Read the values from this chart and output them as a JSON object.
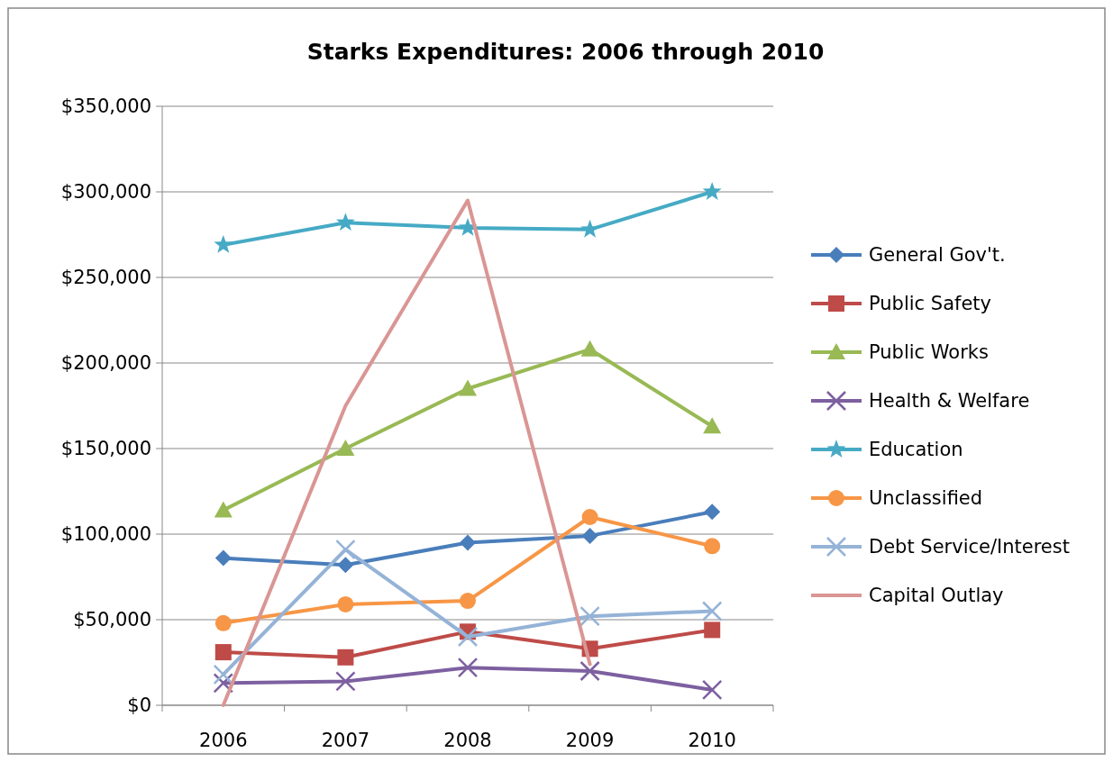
{
  "chart_data": {
    "type": "line",
    "title": "Starks Expenditures: 2006 through 2010",
    "categories": [
      "2006",
      "2007",
      "2008",
      "2009",
      "2010"
    ],
    "ylim": [
      0,
      350000
    ],
    "yticks": [
      {
        "value": 0,
        "label": "$0"
      },
      {
        "value": 50000,
        "label": "$50,000"
      },
      {
        "value": 100000,
        "label": "$100,000"
      },
      {
        "value": 150000,
        "label": "$150,000"
      },
      {
        "value": 200000,
        "label": "$200,000"
      },
      {
        "value": 250000,
        "label": "$250,000"
      },
      {
        "value": 300000,
        "label": "$300,000"
      },
      {
        "value": 350000,
        "label": "$350,000"
      }
    ],
    "grid": "y",
    "legend": "right",
    "series": [
      {
        "name": "General Gov't.",
        "color": "#4a7ebb",
        "marker": "diamond",
        "values": [
          86000,
          82000,
          95000,
          99000,
          113000
        ]
      },
      {
        "name": "Public Safety",
        "color": "#be4b48",
        "marker": "square",
        "values": [
          31000,
          28000,
          43000,
          33000,
          44000
        ]
      },
      {
        "name": "Public Works",
        "color": "#98b954",
        "marker": "triangle",
        "values": [
          114000,
          150000,
          185000,
          208000,
          163000
        ]
      },
      {
        "name": "Health & Welfare",
        "color": "#7d60a0",
        "marker": "cross",
        "values": [
          13000,
          14000,
          22000,
          20000,
          9000
        ]
      },
      {
        "name": "Education",
        "color": "#46aac5",
        "marker": "star",
        "values": [
          269000,
          282000,
          279000,
          278000,
          300000
        ]
      },
      {
        "name": "Unclassified",
        "color": "#f79646",
        "marker": "circle",
        "values": [
          48000,
          59000,
          61000,
          110000,
          93000
        ]
      },
      {
        "name": "Debt Service/Interest",
        "color": "#95b3d7",
        "marker": "cross",
        "values": [
          18000,
          91000,
          40000,
          52000,
          55000
        ]
      },
      {
        "name": "Capital Outlay",
        "color": "#d99694",
        "marker": "none",
        "values": [
          0,
          175000,
          295000,
          24000,
          null
        ]
      }
    ]
  }
}
